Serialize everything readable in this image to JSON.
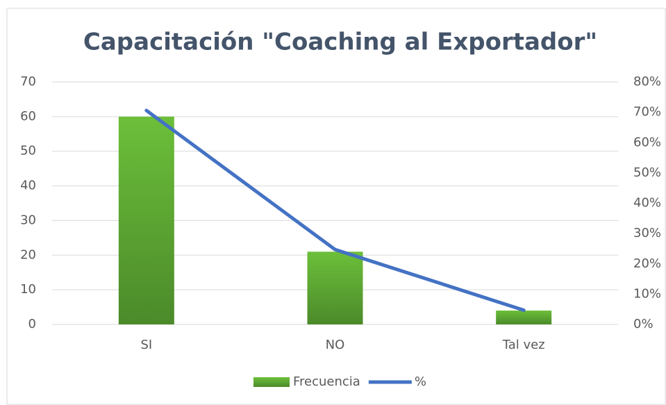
{
  "chart_data": {
    "type": "bar",
    "title": "Capacitación \"Coaching al Exportador\"",
    "categories": [
      "SI",
      "NO",
      "Tal vez"
    ],
    "series": [
      {
        "name": "Frecuencia",
        "type": "bar",
        "color": "#5fa832",
        "values": [
          60,
          21,
          4
        ]
      },
      {
        "name": "%",
        "type": "line",
        "axis": "y2",
        "color": "#4472c4",
        "values": [
          70.6,
          24.7,
          4.7
        ]
      }
    ],
    "ylim": [
      0,
      70
    ],
    "yticks": [
      0,
      10,
      20,
      30,
      40,
      50,
      60,
      70
    ],
    "y2lim": [
      0,
      80
    ],
    "y2ticks": [
      {
        "value": 0,
        "label": "0%"
      },
      {
        "value": 10,
        "label": "10%"
      },
      {
        "value": 20,
        "label": "20%"
      },
      {
        "value": 30,
        "label": "30%"
      },
      {
        "value": 40,
        "label": "40%"
      },
      {
        "value": 50,
        "label": "50%"
      },
      {
        "value": 60,
        "label": "60%"
      },
      {
        "value": 70,
        "label": "70%"
      },
      {
        "value": 80,
        "label": "80%"
      }
    ],
    "grid": true,
    "legend": "bottom"
  }
}
